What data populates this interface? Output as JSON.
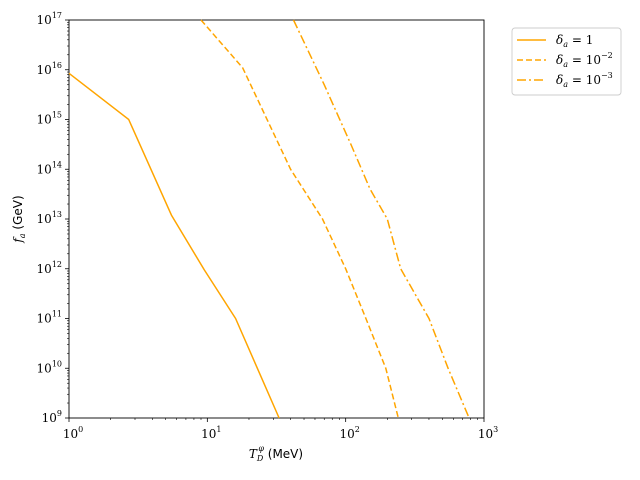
{
  "chart_data": {
    "type": "line",
    "xscale": "log",
    "yscale": "log",
    "xlim": [
      1,
      1000
    ],
    "ylim": [
      1000000000.0,
      1e+17
    ],
    "xlabel": {
      "main": "T",
      "sub": "D",
      "sup": "φ",
      "unit": " (MeV)"
    },
    "ylabel": {
      "main": "f",
      "sub": "a",
      "unit": " (GeV)"
    },
    "legend_position": "outside-top-right",
    "grid": false,
    "x_ticks": [
      {
        "value": 1,
        "base": "10",
        "exp": "0"
      },
      {
        "value": 10,
        "base": "10",
        "exp": "1"
      },
      {
        "value": 100,
        "base": "10",
        "exp": "2"
      },
      {
        "value": 1000,
        "base": "10",
        "exp": "3"
      }
    ],
    "y_ticks": [
      {
        "value": 1000000000.0,
        "base": "10",
        "exp": "9"
      },
      {
        "value": 10000000000.0,
        "base": "10",
        "exp": "10"
      },
      {
        "value": 100000000000.0,
        "base": "10",
        "exp": "11"
      },
      {
        "value": 1000000000000.0,
        "base": "10",
        "exp": "12"
      },
      {
        "value": 10000000000000.0,
        "base": "10",
        "exp": "13"
      },
      {
        "value": 100000000000000.0,
        "base": "10",
        "exp": "14"
      },
      {
        "value": 1000000000000000.0,
        "base": "10",
        "exp": "15"
      },
      {
        "value": 1e+16,
        "base": "10",
        "exp": "16"
      },
      {
        "value": 1e+17,
        "base": "10",
        "exp": "17"
      }
    ],
    "series": [
      {
        "label": {
          "main": "δ",
          "sub": "a",
          "rhs": " = 1",
          "sup": ""
        },
        "color": "#ffa500",
        "dash": "solid",
        "points": [
          [
            1,
            8500000000000000.0
          ],
          [
            2.7,
            1000000000000000.0
          ],
          [
            5.5,
            12000000000000.0
          ],
          [
            9.5,
            950000000000.0
          ],
          [
            16,
            100000000000.0
          ],
          [
            33,
            1000000000.0
          ]
        ]
      },
      {
        "label": {
          "main": "δ",
          "sub": "a",
          "rhs": " = 10",
          "sup": "−2"
        },
        "color": "#ffa500",
        "dash": "dashed",
        "points": [
          [
            9,
            1e+17
          ],
          [
            18,
            1.1e+16
          ],
          [
            40,
            100000000000000.0
          ],
          [
            68,
            10000000000000.0
          ],
          [
            100,
            1000000000000.0
          ],
          [
            140,
            100000000000.0
          ],
          [
            195,
            10000000000.0
          ],
          [
            240,
            1000000000.0
          ]
        ]
      },
      {
        "label": {
          "main": "δ",
          "sub": "a",
          "rhs": " = 10",
          "sup": "−3"
        },
        "color": "#ffa500",
        "dash": "dashdot",
        "points": [
          [
            42,
            1e+17
          ],
          [
            70,
            5000000000000000.0
          ],
          [
            110,
            300000000000000.0
          ],
          [
            150,
            40000000000000.0
          ],
          [
            200,
            10000000000000.0
          ],
          [
            250,
            1000000000000.0
          ],
          [
            400,
            100000000000.0
          ],
          [
            550,
            10000000000.0
          ],
          [
            780,
            1000000000.0
          ]
        ]
      }
    ]
  }
}
